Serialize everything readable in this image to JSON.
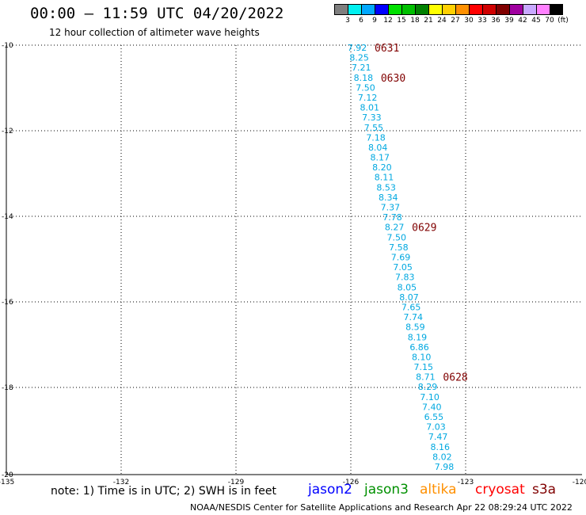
{
  "header": {
    "title": "00:00 — 11:59 UTC 04/20/2022",
    "subtitle": "12 hour collection of altimeter wave heights"
  },
  "color_scale": {
    "labels": [
      "3",
      "6",
      "9",
      "12",
      "15",
      "18",
      "21",
      "24",
      "27",
      "30",
      "33",
      "36",
      "39",
      "42",
      "45",
      "70",
      "(ft)"
    ],
    "colors": [
      "#7f7f7f",
      "#00f0f0",
      "#00a8ff",
      "#0000ff",
      "#00e000",
      "#00c000",
      "#008000",
      "#ffff00",
      "#ffd000",
      "#ff9000",
      "#ff0000",
      "#d00000",
      "#800000",
      "#a000a0",
      "#c8a8ff",
      "#ff80ff",
      "#000000"
    ]
  },
  "map": {
    "lat_labels": [
      "-10",
      "-12",
      "-14",
      "-16",
      "-18",
      "-20"
    ],
    "lon_labels": [
      "-135",
      "-132",
      "-129",
      "-126",
      "-123",
      "-120"
    ]
  },
  "track": {
    "color": "#00a8e0",
    "values": [
      "7.92",
      "8.25",
      "7.21",
      "8.18",
      "7.50",
      "7.12",
      "8.01",
      "7.33",
      "7.55",
      "7.18",
      "8.04",
      "8.17",
      "8.20",
      "8.11",
      "8.53",
      "8.34",
      "7.37",
      "7.78",
      "8.27",
      "7.50",
      "7.58",
      "7.69",
      "7.05",
      "7.83",
      "8.05",
      "8.07",
      "7.65",
      "7.74",
      "8.59",
      "8.19",
      "6.86",
      "8.10",
      "7.15",
      "8.71",
      "8.29",
      "7.10",
      "7.40",
      "6.55",
      "7.03",
      "7.47",
      "8.16",
      "8.02",
      "7.98"
    ],
    "time_labels": [
      {
        "text": "0631",
        "index": 0
      },
      {
        "text": "0630",
        "index": 3
      },
      {
        "text": "0629",
        "index": 18
      },
      {
        "text": "0628",
        "index": 33
      }
    ],
    "time_color": "#800000"
  },
  "note": "note: 1) Time is in UTC; 2) SWH is in feet",
  "satellites": [
    {
      "name": "jason2",
      "color": "#0000ff"
    },
    {
      "name": "jason3",
      "color": "#009000"
    },
    {
      "name": "altika",
      "color": "#ff9000"
    },
    {
      "name": "cryosat",
      "color": "#ff0000"
    },
    {
      "name": "s3a",
      "color": "#800000"
    }
  ],
  "footer": "NOAA/NESDIS Center for Satellite Applications and Research    Apr 22 08:29:24 UTC 2022"
}
